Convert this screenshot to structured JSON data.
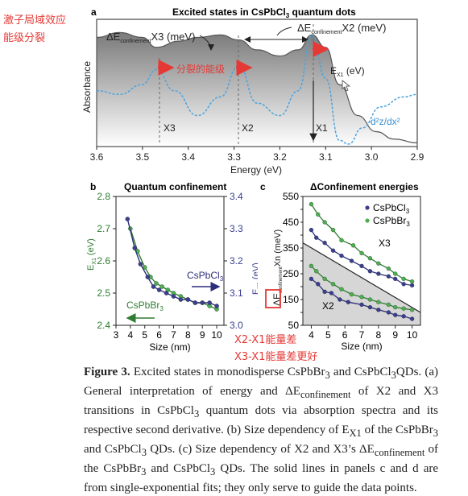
{
  "annotations": {
    "top_left_1": "激子局域效应",
    "top_left_2": "能级分裂",
    "split": "分裂的能级",
    "x2x1": "X2-X1能量差",
    "x3x1": "X3-X1能量差更好"
  },
  "panel_a": {
    "label": "a",
    "title_pre": "Excited states in CsPbCl",
    "title_sub": "3",
    "title_post": " quantum dots",
    "ylabel": "Absorbance",
    "xlabel": "Energy (eV)",
    "xticks": [
      "3.6",
      "3.5",
      "3.4",
      "3.3",
      "3.2",
      "3.1",
      "3.0",
      "2.9"
    ],
    "dE_X3_pre": "ΔE",
    "dE_X3_sub": "confinement",
    "dE_X3_post": "X3 (meV)",
    "dE_X2_pre": "ΔE",
    "dE_X2_sub": "confinement",
    "dE_X2_post": "X2 (meV)",
    "ex1_pre": "E",
    "ex1_sub": "X1",
    "ex1_post": " (eV)",
    "deriv_label": "-d²z/dx²",
    "x3": "X3",
    "x2": "X2",
    "x1": "X1"
  },
  "panel_b": {
    "label": "b",
    "title": "Quantum confinement",
    "ylabel_left": "E",
    "ylabel_left_sub": "X1",
    "ylabel_left_post": " (eV)",
    "ylabel_right": "E",
    "ylabel_right_sub": "X1",
    "ylabel_right_post": " (eV)",
    "xlabel": "Size (nm)",
    "xticks": [
      "3",
      "4",
      "5",
      "6",
      "7",
      "8",
      "9",
      "10"
    ],
    "yticks_left": [
      "2.4",
      "2.5",
      "2.6",
      "2.7",
      "2.8"
    ],
    "yticks_right": [
      "3.0",
      "3.1",
      "3.2",
      "3.3",
      "3.4"
    ],
    "legend_cl": "CsPbCl",
    "legend_cl_sub": "3",
    "legend_br": "CsPbBr",
    "legend_br_sub": "3"
  },
  "panel_c": {
    "label": "c",
    "title": "ΔConfinement energies",
    "ylabel_pre": "ΔE",
    "ylabel_sub": "confinement",
    "ylabel_post": "Xn (meV)",
    "xlabel": "Size (nm)",
    "xticks": [
      "3",
      "4",
      "5",
      "6",
      "7",
      "8",
      "9",
      "10"
    ],
    "yticks": [
      "50",
      "100",
      "150",
      "200",
      "250",
      "300",
      "350",
      "400",
      "450",
      "500",
      "550"
    ],
    "legend_cl": "CsPbCl",
    "legend_cl_sub": "3",
    "legend_br": "CsPbBr",
    "legend_br_sub": "3",
    "region_x3": "X3",
    "region_x2": "X2"
  },
  "caption": {
    "fig": "Figure 3.",
    "text1": " Excited states in monodisperse CsPbBr",
    "s1": "3",
    "text2": " and CsPbCl",
    "s2": "3",
    "text3": "QDs. (a) General interpretation of energy and ΔE",
    "s3": "confinement",
    "text4": " of X2 and X3 transitions in CsPbCl",
    "s4": "3",
    "text5": " quantum dots via absorption spectra and its respective second derivative. (b) Size dependency of E",
    "s5": "X1",
    "text6": " of the CsPbBr",
    "s6": "3",
    "text7": " and CsPbCl",
    "s7": "3",
    "text8": " QDs. (c) Size dependency of X2 and X3’s ΔE",
    "s8": "confinement",
    "text9": " of the CsPbBr",
    "s9": "3",
    "text10": " and CsPbCl",
    "s10": "3",
    "text11": " QDs. The solid lines in panels c and d are from single-exponential fits; they only serve to guide the data points."
  },
  "chart_data": [
    {
      "type": "line",
      "panel": "a",
      "x_reversed": true,
      "xlim": [
        2.9,
        3.6
      ],
      "series": [
        {
          "kind": "absorbance",
          "x": [
            3.6,
            3.55,
            3.5,
            3.47,
            3.42,
            3.38,
            3.33,
            3.29,
            3.25,
            3.2,
            3.16,
            3.13,
            3.1,
            3.07,
            3.03,
            2.99,
            2.95,
            2.9
          ],
          "y": [
            0.88,
            0.92,
            0.88,
            0.8,
            0.85,
            0.88,
            0.9,
            0.86,
            0.78,
            0.73,
            0.78,
            0.9,
            0.8,
            0.5,
            0.25,
            0.12,
            0.06,
            0.03
          ]
        },
        {
          "kind": "second derivative",
          "x": [
            3.6,
            3.55,
            3.5,
            3.47,
            3.43,
            3.38,
            3.33,
            3.29,
            3.25,
            3.2,
            3.16,
            3.13,
            3.1,
            3.07,
            3.05,
            3.02,
            2.98,
            2.93,
            2.9
          ],
          "y": [
            0.45,
            0.42,
            0.5,
            0.62,
            0.45,
            0.25,
            0.4,
            0.65,
            0.35,
            0.25,
            0.45,
            0.9,
            0.55,
            0.05,
            0.02,
            0.15,
            0.32,
            0.4,
            0.42
          ]
        }
      ],
      "markers": [
        {
          "label": "X3",
          "x": 3.47
        },
        {
          "label": "X2",
          "x": 3.29
        },
        {
          "label": "X1",
          "x": 3.13
        }
      ]
    },
    {
      "type": "scatter",
      "panel": "b",
      "xlim": [
        3,
        10.5
      ],
      "ylim_left": [
        2.4,
        2.8
      ],
      "ylim_right": [
        3.0,
        3.4
      ],
      "series": [
        {
          "name": "CsPbBr3",
          "axis": "left",
          "x": [
            4.0,
            4.5,
            5.0,
            5.4,
            5.8,
            6.2,
            6.6,
            7.0,
            7.5,
            8.0,
            8.5,
            9.0,
            9.5,
            10.0
          ],
          "y": [
            2.7,
            2.63,
            2.58,
            2.55,
            2.53,
            2.52,
            2.51,
            2.5,
            2.49,
            2.48,
            2.47,
            2.47,
            2.46,
            2.45
          ]
        },
        {
          "name": "CsPbCl3",
          "axis": "right",
          "x": [
            3.8,
            4.3,
            4.7,
            5.2,
            5.6,
            6.0,
            6.5,
            7.0,
            7.5,
            8.0,
            8.5,
            9.0,
            9.5,
            10.0
          ],
          "y": [
            3.33,
            3.24,
            3.19,
            3.15,
            3.12,
            3.11,
            3.1,
            3.09,
            3.08,
            3.08,
            3.07,
            3.07,
            3.07,
            3.06
          ]
        }
      ]
    },
    {
      "type": "scatter",
      "panel": "c",
      "xlim": [
        3.5,
        10.5
      ],
      "ylim": [
        50,
        550
      ],
      "series": [
        {
          "name": "CsPbCl3 X3",
          "x": [
            4.0,
            4.3,
            4.8,
            5.3,
            5.8,
            6.4,
            7.0,
            7.5,
            8.0,
            8.6,
            9.0,
            9.5,
            10.0
          ],
          "y": [
            420,
            390,
            370,
            340,
            320,
            300,
            280,
            260,
            250,
            240,
            230,
            210,
            205
          ]
        },
        {
          "name": "CsPbBr3 X3",
          "x": [
            4.0,
            4.4,
            4.8,
            5.3,
            5.8,
            6.5,
            7.0,
            7.5,
            8.0,
            8.6,
            9.0,
            9.5,
            10.0
          ],
          "y": [
            520,
            480,
            450,
            420,
            380,
            360,
            330,
            310,
            290,
            270,
            250,
            230,
            220
          ]
        },
        {
          "name": "CsPbCl3 X2",
          "x": [
            4.0,
            4.4,
            4.8,
            5.2,
            5.7,
            6.2,
            7.0,
            7.5,
            8.0,
            8.6,
            9.0,
            9.5,
            10.0
          ],
          "y": [
            230,
            210,
            180,
            175,
            150,
            140,
            130,
            120,
            110,
            100,
            90,
            85,
            75
          ]
        },
        {
          "name": "CsPbBr3 X2",
          "x": [
            4.0,
            4.3,
            4.8,
            5.3,
            5.8,
            6.4,
            7.0,
            7.5,
            8.0,
            8.6,
            9.0,
            9.5,
            10.0
          ],
          "y": [
            280,
            260,
            230,
            210,
            190,
            170,
            160,
            150,
            140,
            130,
            120,
            115,
            110
          ]
        }
      ]
    }
  ]
}
